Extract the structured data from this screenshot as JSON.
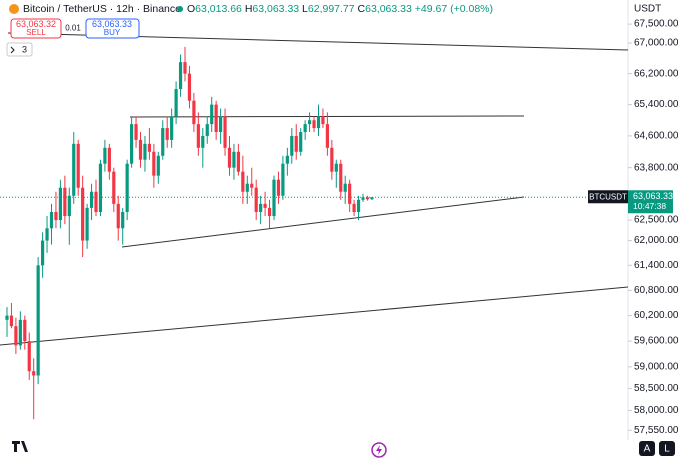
{
  "chart_data": {
    "type": "candlestick",
    "title": "Bitcoin / TetherUS · 12h · Binance",
    "ohlc_legend": [
      {
        "key": "O",
        "value": "63,013.66"
      },
      {
        "key": "H",
        "value": "63,063.33"
      },
      {
        "key": "L",
        "value": "62,997.77"
      },
      {
        "key": "C",
        "value": "63,063.33"
      }
    ],
    "change": "+49.67 (+0.08%)",
    "y_axis_label": "USDT",
    "sell": {
      "price": "63,063.32",
      "label": "SELL"
    },
    "spread": "0.01",
    "buy": {
      "price": "63,063.33",
      "label": "BUY"
    },
    "drawings_count": "3",
    "price_tag": {
      "symbol": "BTCUSDT",
      "price": "63,063.33",
      "countdown": "10:47:38"
    },
    "buttons": [
      "A",
      "L"
    ],
    "log_scale": true,
    "up_color": "#089981",
    "down_color": "#f23645",
    "ylim": [
      57330,
      67875
    ],
    "yticks": [
      {
        "value": 67500,
        "label": "67,500.00"
      },
      {
        "value": 67000,
        "label": "67,000.00"
      },
      {
        "value": 66200,
        "label": "66,200.00"
      },
      {
        "value": 65400,
        "label": "65,400.00"
      },
      {
        "value": 64600,
        "label": "64,600.00"
      },
      {
        "value": 63800,
        "label": "63,800.00"
      },
      {
        "value": 62500,
        "label": "62,500.00"
      },
      {
        "value": 62000,
        "label": "62,000.00"
      },
      {
        "value": 61400,
        "label": "61,400.00"
      },
      {
        "value": 60800,
        "label": "60,800.00"
      },
      {
        "value": 60200,
        "label": "60,200.00"
      },
      {
        "value": 59600,
        "label": "59,600.00"
      },
      {
        "value": 59000,
        "label": "59,000.00"
      },
      {
        "value": 58500,
        "label": "58,500.00"
      },
      {
        "value": 58000,
        "label": "58,000.00"
      },
      {
        "value": 57550,
        "label": "57,550.00"
      }
    ],
    "open": [
      60100,
      60200,
      59950,
      59500,
      60100,
      59600,
      58900,
      58800,
      61400,
      62000,
      62300,
      62700,
      62500,
      63300,
      62600,
      63100,
      64400,
      63300,
      62000,
      62800,
      63200,
      62700,
      63900,
      64300,
      63700,
      62900,
      62300,
      62700,
      63900,
      64900,
      64500,
      64000,
      64400,
      64200,
      63600,
      64100,
      64800,
      64500,
      65100,
      65800,
      66500,
      66200,
      65500,
      64900,
      64300,
      64600,
      64900,
      65400,
      64700,
      65100,
      64300,
      63800,
      64200,
      63700,
      63200,
      63400,
      63300,
      62700,
      62900,
      62800,
      62600,
      63500,
      63100,
      63900,
      64100,
      64600,
      64200,
      64700,
      64900,
      65000,
      64800,
      65100,
      64900,
      64300,
      63700,
      63900,
      63200,
      63400,
      62900,
      62700,
      63000,
      63060,
      63013.66
    ],
    "high": [
      60400,
      60500,
      60150,
      60300,
      60200,
      59800,
      59200,
      61600,
      62200,
      62600,
      62900,
      63200,
      63500,
      63600,
      63300,
      64700,
      64500,
      63600,
      62900,
      63400,
      63500,
      64000,
      64500,
      64400,
      63800,
      63100,
      62800,
      64000,
      65100,
      65100,
      64700,
      64600,
      64800,
      64400,
      64200,
      65000,
      65100,
      65300,
      66000,
      66700,
      66900,
      66400,
      65700,
      65200,
      64800,
      65100,
      65600,
      65500,
      65300,
      65300,
      64600,
      64400,
      64400,
      64100,
      63600,
      63800,
      63500,
      63100,
      63200,
      63000,
      63600,
      63700,
      64100,
      64300,
      64800,
      64900,
      64800,
      65000,
      65200,
      65100,
      65400,
      65300,
      65200,
      64500,
      64000,
      64000,
      63600,
      63500,
      63000,
      63100,
      63150,
      63100,
      63063.33
    ],
    "low": [
      59700,
      59900,
      59300,
      59400,
      59400,
      58700,
      57800,
      58600,
      61100,
      61700,
      61900,
      62300,
      62300,
      62400,
      61900,
      62900,
      63100,
      61600,
      61800,
      62500,
      62600,
      62600,
      63700,
      63500,
      62700,
      62000,
      61900,
      62500,
      63800,
      64300,
      63800,
      63700,
      64000,
      63300,
      63400,
      64000,
      64300,
      64300,
      64900,
      65600,
      66000,
      65300,
      64700,
      64100,
      63800,
      64400,
      64700,
      64500,
      64400,
      64100,
      63600,
      63500,
      63600,
      62900,
      62900,
      63100,
      62500,
      62400,
      62600,
      62300,
      62500,
      62900,
      63000,
      63600,
      63900,
      64000,
      64100,
      64500,
      64700,
      64700,
      64600,
      64800,
      64100,
      63500,
      63300,
      63000,
      62900,
      62700,
      62600,
      62500,
      62950,
      62980,
      62997.77
    ],
    "close": [
      60200,
      59950,
      59500,
      60100,
      59600,
      58900,
      58800,
      61400,
      62000,
      62300,
      62700,
      62500,
      63300,
      62600,
      63100,
      64400,
      63300,
      62000,
      62800,
      63200,
      62700,
      63900,
      64300,
      63700,
      62900,
      62300,
      62700,
      63900,
      64900,
      64500,
      64000,
      64400,
      64200,
      63600,
      64100,
      64800,
      64500,
      65100,
      65800,
      66500,
      66200,
      65500,
      64900,
      64300,
      64600,
      64900,
      65400,
      64700,
      65100,
      64300,
      63800,
      64200,
      63700,
      63200,
      63400,
      63300,
      62700,
      62900,
      62800,
      62600,
      63500,
      63100,
      63900,
      64100,
      64600,
      64200,
      64700,
      64900,
      65000,
      64800,
      65100,
      64900,
      64300,
      63700,
      63900,
      63200,
      63400,
      62900,
      62700,
      63000,
      63060,
      63013.66,
      63063.33
    ]
  }
}
